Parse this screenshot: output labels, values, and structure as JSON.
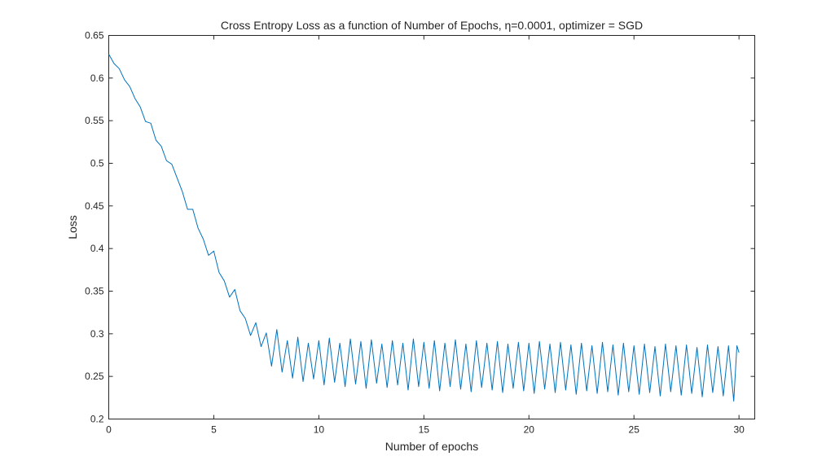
{
  "chart_data": {
    "type": "line",
    "title": "Cross Entropy Loss as a function of Number of Epochs, η=0.0001, optimizer = SGD",
    "xlabel": "Number of epochs",
    "ylabel": "Loss",
    "xlim": [
      0,
      30.75
    ],
    "ylim": [
      0.2,
      0.65
    ],
    "xticks": [
      0,
      5,
      10,
      15,
      20,
      25,
      30
    ],
    "xtick_labels": [
      "0",
      "5",
      "10",
      "15",
      "20",
      "25",
      "30"
    ],
    "yticks": [
      0.2,
      0.25,
      0.3,
      0.35,
      0.4,
      0.45,
      0.5,
      0.55,
      0.6,
      0.65
    ],
    "ytick_labels": [
      "0.2",
      "0.25",
      "0.3",
      "0.35",
      "0.4",
      "0.45",
      "0.5",
      "0.55",
      "0.6",
      "0.65"
    ],
    "grid": false,
    "legend": "none",
    "series": [
      {
        "color": "#0072bd",
        "x": [
          0,
          0.25,
          0.5,
          0.75,
          1,
          1.25,
          1.5,
          1.75,
          2,
          2.25,
          2.5,
          2.75,
          3,
          3.25,
          3.5,
          3.75,
          4,
          4.25,
          4.5,
          4.75,
          5,
          5.25,
          5.5,
          5.75,
          6,
          6.25,
          6.5,
          6.75,
          7,
          7.25,
          7.5,
          7.75,
          8,
          8.25,
          8.5,
          8.75,
          9,
          9.25,
          9.5,
          9.75,
          10,
          10.25,
          10.5,
          10.75,
          11,
          11.25,
          11.5,
          11.75,
          12,
          12.25,
          12.5,
          12.75,
          13,
          13.25,
          13.5,
          13.75,
          14,
          14.25,
          14.5,
          14.75,
          15,
          15.25,
          15.5,
          15.75,
          16,
          16.25,
          16.5,
          16.75,
          17,
          17.25,
          17.5,
          17.75,
          18,
          18.25,
          18.5,
          18.75,
          19,
          19.25,
          19.5,
          19.75,
          20,
          20.25,
          20.5,
          20.75,
          21,
          21.25,
          21.5,
          21.75,
          22,
          22.25,
          22.5,
          22.75,
          23,
          23.25,
          23.5,
          23.75,
          24,
          24.25,
          24.5,
          24.75,
          25,
          25.25,
          25.5,
          25.75,
          26,
          26.25,
          26.5,
          26.75,
          27,
          27.25,
          27.5,
          27.75,
          28,
          28.25,
          28.5,
          28.75,
          29,
          29.25,
          29.5,
          29.75,
          29.9,
          30
        ],
        "y": [
          0.628,
          0.617,
          0.611,
          0.598,
          0.59,
          0.576,
          0.566,
          0.549,
          0.547,
          0.527,
          0.52,
          0.503,
          0.499,
          0.483,
          0.467,
          0.446,
          0.446,
          0.424,
          0.411,
          0.392,
          0.397,
          0.372,
          0.362,
          0.343,
          0.352,
          0.327,
          0.318,
          0.298,
          0.313,
          0.285,
          0.301,
          0.262,
          0.305,
          0.255,
          0.292,
          0.248,
          0.296,
          0.244,
          0.289,
          0.247,
          0.292,
          0.24,
          0.295,
          0.243,
          0.289,
          0.238,
          0.294,
          0.241,
          0.291,
          0.236,
          0.293,
          0.242,
          0.288,
          0.237,
          0.292,
          0.24,
          0.289,
          0.234,
          0.294,
          0.238,
          0.29,
          0.236,
          0.292,
          0.233,
          0.289,
          0.238,
          0.293,
          0.235,
          0.288,
          0.232,
          0.292,
          0.237,
          0.289,
          0.234,
          0.291,
          0.231,
          0.288,
          0.236,
          0.29,
          0.233,
          0.289,
          0.23,
          0.291,
          0.235,
          0.288,
          0.231,
          0.29,
          0.234,
          0.287,
          0.229,
          0.289,
          0.233,
          0.286,
          0.23,
          0.29,
          0.232,
          0.287,
          0.228,
          0.289,
          0.232,
          0.286,
          0.229,
          0.288,
          0.231,
          0.285,
          0.227,
          0.288,
          0.232,
          0.286,
          0.228,
          0.287,
          0.23,
          0.284,
          0.226,
          0.287,
          0.231,
          0.285,
          0.227,
          0.286,
          0.221,
          0.286,
          0.278
        ]
      }
    ]
  }
}
